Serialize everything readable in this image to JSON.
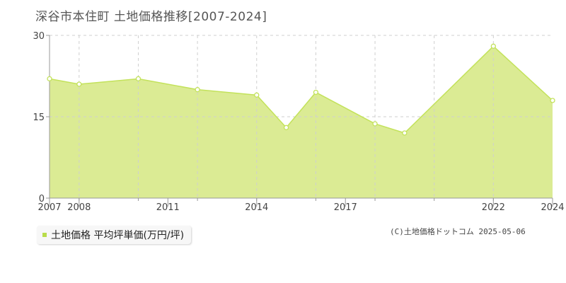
{
  "title": "深谷市本住町 土地価格推移[2007-2024]",
  "legend_label": "土地価格 平均坪単価(万円/坪)",
  "copyright": "(C)土地価格ドットコム 2025-05-06",
  "colors": {
    "fill": "#dbeb94",
    "line": "#c3e25b",
    "marker_fill": "#ffffff",
    "grid": "#cfcfcf",
    "axis": "#999999"
  },
  "chart_data": {
    "type": "area",
    "title": "深谷市本住町 土地価格推移[2007-2024]",
    "xlabel": "",
    "ylabel": "",
    "xlim": [
      2007,
      2024
    ],
    "ylim": [
      0,
      30
    ],
    "grid": true,
    "legend_position": "bottom-left",
    "x_ticks": [
      2007,
      2008,
      2011,
      2014,
      2017,
      2022,
      2024
    ],
    "y_ticks": [
      0,
      15,
      30
    ],
    "series": [
      {
        "name": "土地価格 平均坪単価(万円/坪)",
        "x": [
          2007,
          2008,
          2009,
          2010,
          2011,
          2012,
          2013,
          2014,
          2015,
          2016,
          2017,
          2018,
          2019,
          2020,
          2021,
          2022,
          2023,
          2024
        ],
        "values": [
          22.0,
          21.0,
          null,
          22.0,
          null,
          20.0,
          null,
          19.0,
          13.0,
          19.5,
          null,
          13.7,
          12.0,
          null,
          null,
          28.0,
          null,
          18.0
        ]
      }
    ]
  }
}
